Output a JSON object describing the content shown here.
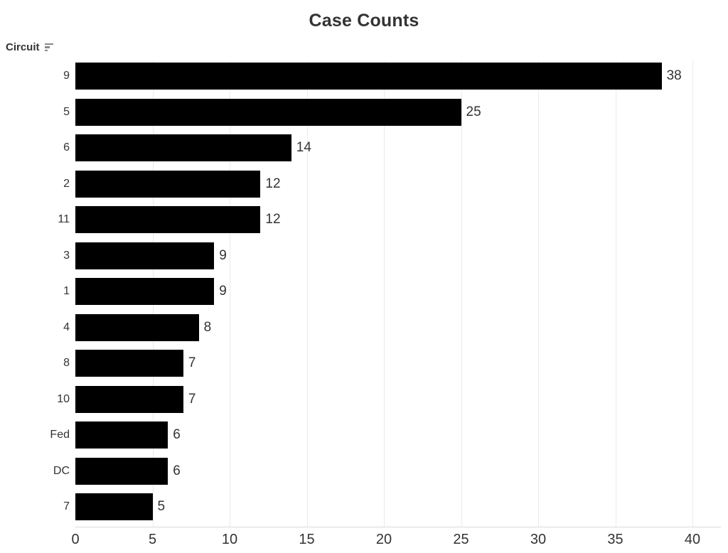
{
  "title": "Case Counts",
  "field": {
    "label": "Circuit",
    "sort_icon": "sort-descending-icon"
  },
  "colors": {
    "bar": "#000000",
    "text": "#333333",
    "gridline": "#ebebeb",
    "axis_line": "#d9d9d9",
    "sort_icon": "#8a8a8a"
  },
  "chart_data": {
    "type": "bar",
    "orientation": "horizontal",
    "title": "Case Counts",
    "categories": [
      "9",
      "5",
      "6",
      "2",
      "11",
      "3",
      "1",
      "4",
      "8",
      "10",
      "Fed",
      "DC",
      "7"
    ],
    "values": [
      38,
      25,
      14,
      12,
      12,
      9,
      9,
      8,
      7,
      7,
      6,
      6,
      5
    ],
    "xlabel": "",
    "ylabel": "Circuit",
    "x_ticks": [
      0,
      5,
      10,
      15,
      20,
      25,
      30,
      35,
      40
    ],
    "xlim": [
      0,
      42
    ],
    "grid": true,
    "legend": "none",
    "bar_color": "#000000",
    "value_labels_shown": true
  }
}
